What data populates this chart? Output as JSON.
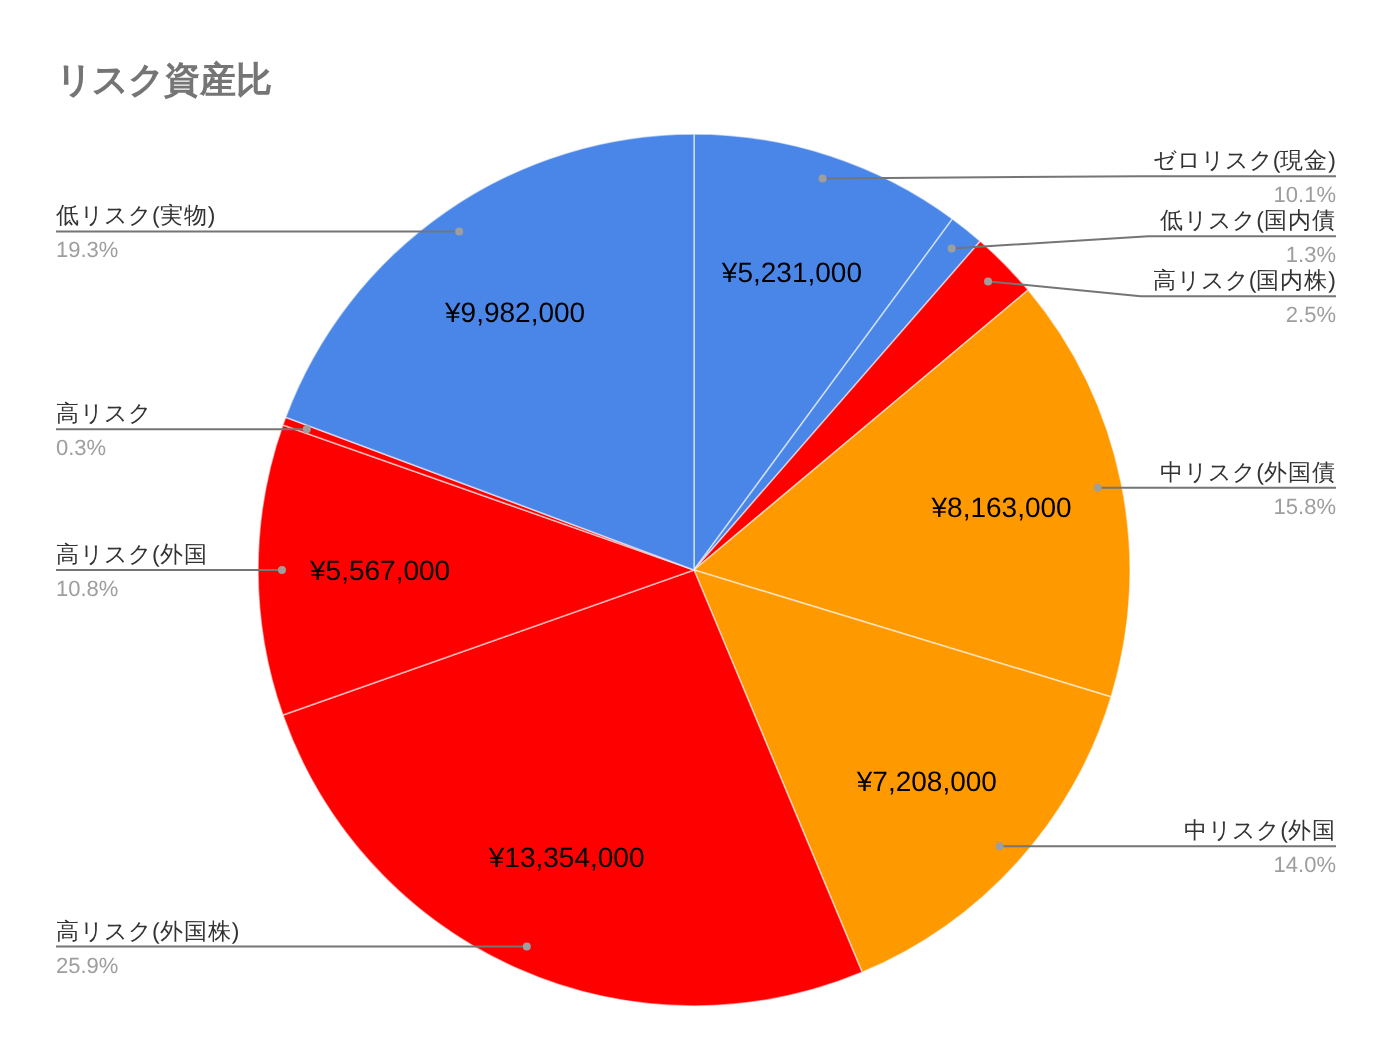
{
  "chart_data": {
    "type": "pie",
    "title": "リスク資産比",
    "categories": [
      "ゼロリスク(現金)",
      "低リスク(国内債",
      "高リスク(国内株)",
      "中リスク(外国債",
      "中リスク(外国",
      "高リスク(外国株)",
      "高リスク(外国",
      "高リスク",
      "低リスク(実物)"
    ],
    "values": [
      10.1,
      1.3,
      2.5,
      15.8,
      14.0,
      25.9,
      10.8,
      0.3,
      19.3
    ],
    "value_labels": [
      "10.1%",
      "1.3%",
      "2.5%",
      "15.8%",
      "14.0%",
      "25.9%",
      "10.8%",
      "0.3%",
      "19.3%"
    ],
    "colors": [
      "#4a86e8",
      "#4a86e8",
      "#ff0000",
      "#ff9900",
      "#ff9900",
      "#ff0000",
      "#ff0000",
      "#ff0000",
      "#4a86e8"
    ],
    "annotations": [
      {
        "text": "¥5,231,000",
        "x": "ゼロリスク(現金)"
      },
      {
        "text": "¥8,163,000",
        "x": "中リスク(外国債"
      },
      {
        "text": "¥7,208,000",
        "x": "中リスク(外国"
      },
      {
        "text": "¥13,354,000",
        "x": "高リスク(外国株)"
      },
      {
        "text": "¥5,567,000",
        "x": "高リスク(外国"
      },
      {
        "text": "¥9,982,000",
        "x": "低リスク(実物)"
      }
    ]
  }
}
